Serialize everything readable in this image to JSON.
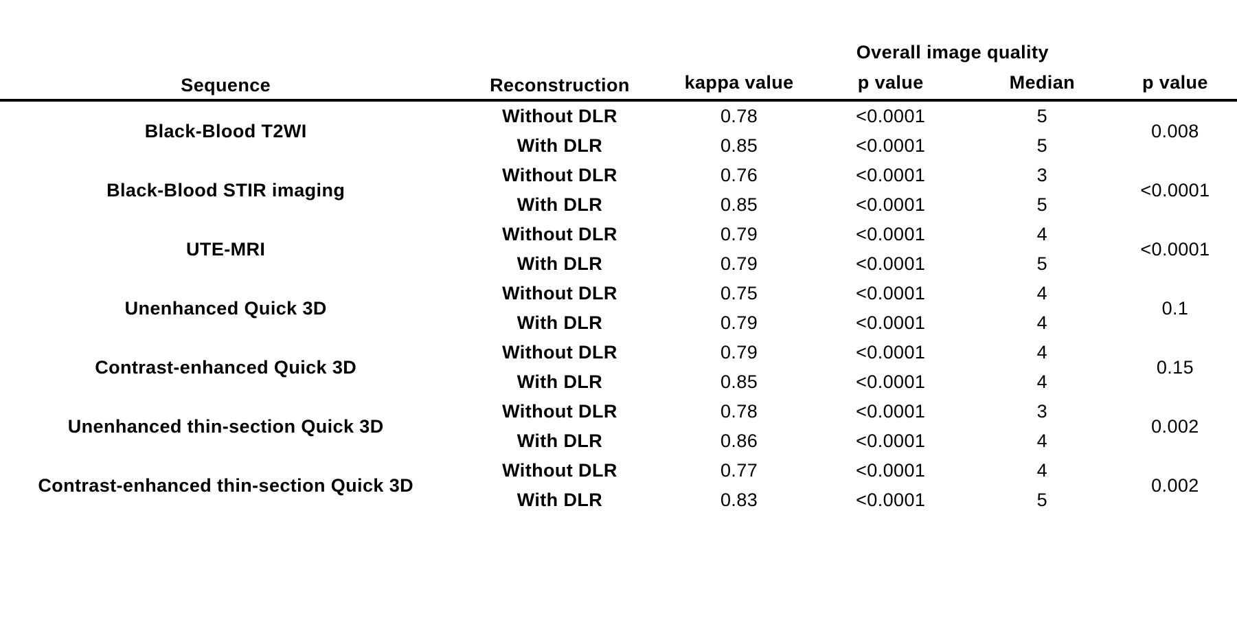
{
  "table": {
    "header": {
      "sequence": "Sequence",
      "reconstruction": "Reconstruction",
      "group_header": "Overall image quality",
      "sub_headers": [
        "kappa value",
        "p value",
        "Median",
        "p value"
      ]
    },
    "groups": [
      {
        "sequence": "Black-Blood T2WI",
        "rows": [
          {
            "reconstruction": "Without DLR",
            "kappa": "0.78",
            "p": "<0.0001",
            "median": "5"
          },
          {
            "reconstruction": "With DLR",
            "kappa": "0.85",
            "p": "<0.0001",
            "median": "5"
          }
        ],
        "p_value": "0.008"
      },
      {
        "sequence": "Black-Blood STIR imaging",
        "rows": [
          {
            "reconstruction": "Without DLR",
            "kappa": "0.76",
            "p": "<0.0001",
            "median": "3"
          },
          {
            "reconstruction": "With DLR",
            "kappa": "0.85",
            "p": "<0.0001",
            "median": "5"
          }
        ],
        "p_value": "<0.0001"
      },
      {
        "sequence": "UTE-MRI",
        "rows": [
          {
            "reconstruction": "Without DLR",
            "kappa": "0.79",
            "p": "<0.0001",
            "median": "4"
          },
          {
            "reconstruction": "With DLR",
            "kappa": "0.79",
            "p": "<0.0001",
            "median": "5"
          }
        ],
        "p_value": "<0.0001"
      },
      {
        "sequence": "Unenhanced Quick 3D",
        "rows": [
          {
            "reconstruction": "Without DLR",
            "kappa": "0.75",
            "p": "<0.0001",
            "median": "4"
          },
          {
            "reconstruction": "With DLR",
            "kappa": "0.79",
            "p": "<0.0001",
            "median": "4"
          }
        ],
        "p_value": "0.1"
      },
      {
        "sequence": "Contrast-enhanced Quick 3D",
        "rows": [
          {
            "reconstruction": "Without DLR",
            "kappa": "0.79",
            "p": "<0.0001",
            "median": "4"
          },
          {
            "reconstruction": "With DLR",
            "kappa": "0.85",
            "p": "<0.0001",
            "median": "4"
          }
        ],
        "p_value": "0.15"
      },
      {
        "sequence": "Unenhanced thin-section Quick 3D",
        "rows": [
          {
            "reconstruction": "Without DLR",
            "kappa": "0.78",
            "p": "<0.0001",
            "median": "3"
          },
          {
            "reconstruction": "With DLR",
            "kappa": "0.86",
            "p": "<0.0001",
            "median": "4"
          }
        ],
        "p_value": "0.002"
      },
      {
        "sequence": "Contrast-enhanced thin-section Quick 3D",
        "rows": [
          {
            "reconstruction": "Without DLR",
            "kappa": "0.77",
            "p": "<0.0001",
            "median": "4"
          },
          {
            "reconstruction": "With DLR",
            "kappa": "0.83",
            "p": "<0.0001",
            "median": "5"
          }
        ],
        "p_value": "0.002"
      }
    ],
    "colors": {
      "text": "#000000",
      "background": "#ffffff",
      "rule": "#000000"
    }
  }
}
